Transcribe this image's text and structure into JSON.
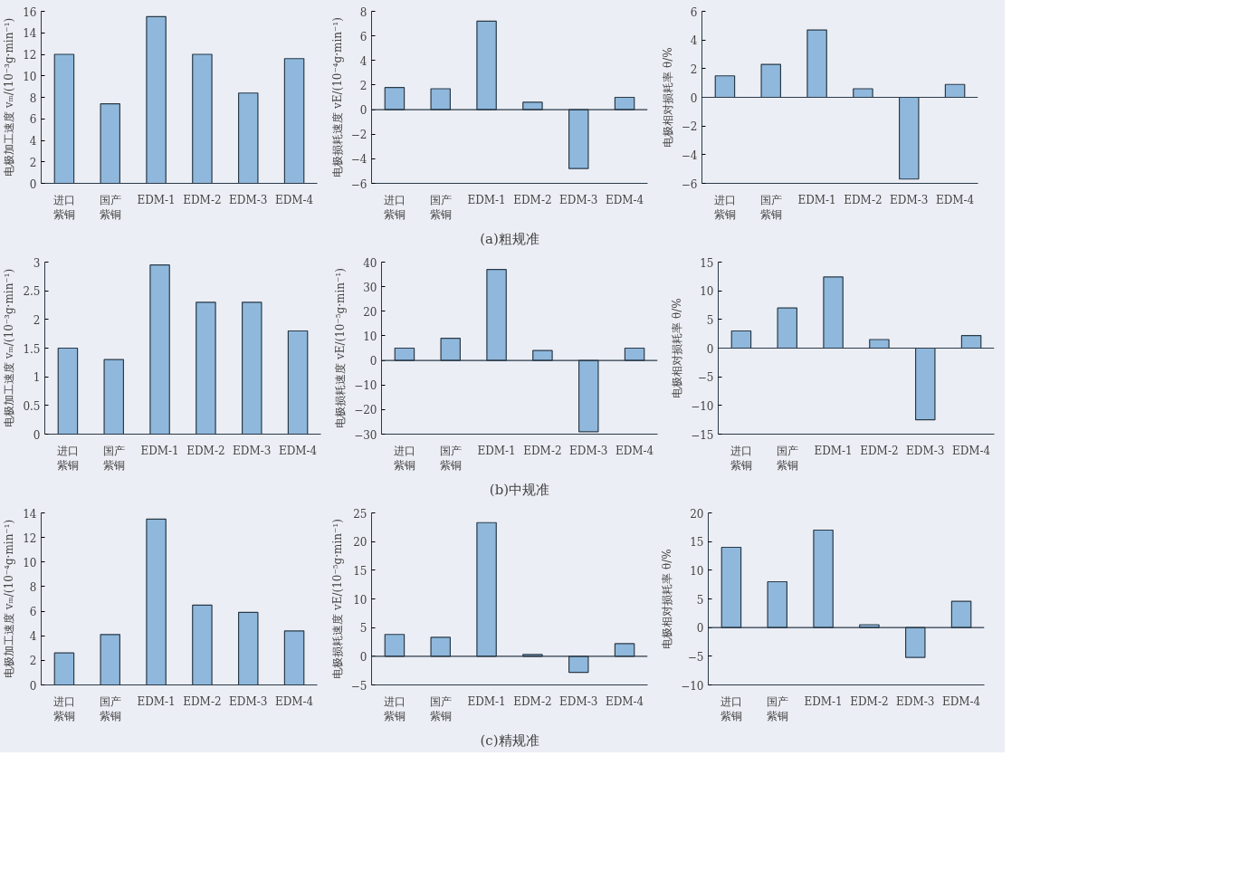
{
  "chart_data": [
    {
      "type": "bar",
      "categories": [
        "进口紫铜",
        "国产紫铜",
        "EDM-1",
        "EDM-2",
        "EDM-3",
        "EDM-4"
      ],
      "ylabel": "电极加工速度 vₘ/(10⁻³g·min⁻¹)",
      "color": "#8fb8dc",
      "values": [
        12,
        7.4,
        15.5,
        12,
        8.4,
        11.6
      ],
      "ylim": [
        0,
        16
      ],
      "yticks": [
        0,
        2,
        4,
        6,
        8,
        10,
        12,
        14,
        16
      ],
      "grid": false
    },
    {
      "type": "bar",
      "categories": [
        "进口紫铜",
        "国产紫铜",
        "EDM-1",
        "EDM-2",
        "EDM-3",
        "EDM-4"
      ],
      "ylabel": "电极损耗速度 vE/(10⁻⁴g·min⁻¹)",
      "color": "#8fb8dc",
      "values": [
        1.8,
        1.7,
        7.2,
        0.6,
        -4.8,
        1.0
      ],
      "ylim": [
        -6,
        8
      ],
      "yticks": [
        -6,
        -4,
        -2,
        0,
        2,
        4,
        6,
        8
      ],
      "ref_lines": [
        {
          "axis": "y",
          "value": 0
        }
      ],
      "annotations": [
        "(a)粗规准"
      ],
      "grid": false
    },
    {
      "type": "bar",
      "categories": [
        "进口紫铜",
        "国产紫铜",
        "EDM-1",
        "EDM-2",
        "EDM-3",
        "EDM-4"
      ],
      "ylabel": "电极相对损耗率 θ/%",
      "color": "#8fb8dc",
      "values": [
        1.5,
        2.3,
        4.7,
        0.6,
        -5.7,
        0.9
      ],
      "ylim": [
        -6,
        6
      ],
      "yticks": [
        -6,
        -4,
        -2,
        0,
        2,
        4,
        6
      ],
      "ref_lines": [
        {
          "axis": "y",
          "value": 0
        }
      ],
      "grid": false
    },
    {
      "type": "bar",
      "categories": [
        "进口紫铜",
        "国产紫铜",
        "EDM-1",
        "EDM-2",
        "EDM-3",
        "EDM-4"
      ],
      "ylabel": "电极加工速度 vₘ/(10⁻³g·min⁻¹)",
      "color": "#8fb8dc",
      "values": [
        1.5,
        1.3,
        2.95,
        2.3,
        2.3,
        1.8
      ],
      "ylim": [
        0,
        3
      ],
      "yticks": [
        0,
        0.5,
        1,
        1.5,
        2,
        2.5,
        3
      ],
      "grid": false
    },
    {
      "type": "bar",
      "categories": [
        "进口紫铜",
        "国产紫铜",
        "EDM-1",
        "EDM-2",
        "EDM-3",
        "EDM-4"
      ],
      "ylabel": "电极损耗速度 vE/(10⁻⁵g·min⁻¹)",
      "color": "#8fb8dc",
      "values": [
        5,
        9,
        37,
        4,
        -29,
        5
      ],
      "ylim": [
        -30,
        40
      ],
      "yticks": [
        -30,
        -20,
        -10,
        0,
        10,
        20,
        30,
        40
      ],
      "ref_lines": [
        {
          "axis": "y",
          "value": 0
        }
      ],
      "annotations": [
        "(b)中规准"
      ],
      "grid": false
    },
    {
      "type": "bar",
      "categories": [
        "进口紫铜",
        "国产紫铜",
        "EDM-1",
        "EDM-2",
        "EDM-3",
        "EDM-4"
      ],
      "ylabel": "电极相对损耗率 θ/%",
      "color": "#8fb8dc",
      "values": [
        3,
        7,
        12.4,
        1.5,
        -12.5,
        2.2
      ],
      "ylim": [
        -15,
        15
      ],
      "yticks": [
        -15,
        -10,
        -5,
        0,
        5,
        10,
        15
      ],
      "ref_lines": [
        {
          "axis": "y",
          "value": 0
        }
      ],
      "grid": false
    },
    {
      "type": "bar",
      "categories": [
        "进口紫铜",
        "国产紫铜",
        "EDM-1",
        "EDM-2",
        "EDM-3",
        "EDM-4"
      ],
      "ylabel": "电极加工速度 vₘ/(10⁻⁴g·min⁻¹)",
      "color": "#8fb8dc",
      "values": [
        2.6,
        4.1,
        13.5,
        6.5,
        5.9,
        4.4
      ],
      "ylim": [
        0,
        14
      ],
      "yticks": [
        0,
        2,
        4,
        6,
        8,
        10,
        12,
        14
      ],
      "grid": false
    },
    {
      "type": "bar",
      "categories": [
        "进口紫铜",
        "国产紫铜",
        "EDM-1",
        "EDM-2",
        "EDM-3",
        "EDM-4"
      ],
      "ylabel": "电极损耗速度 vE/(10⁻⁵g·min⁻¹)",
      "color": "#8fb8dc",
      "values": [
        3.8,
        3.3,
        23.3,
        0.3,
        -2.8,
        2.2
      ],
      "ylim": [
        -5,
        25
      ],
      "yticks": [
        -5,
        0,
        5,
        10,
        15,
        20,
        25
      ],
      "ref_lines": [
        {
          "axis": "y",
          "value": 0
        }
      ],
      "annotations": [
        "(c)精规准"
      ],
      "grid": false
    },
    {
      "type": "bar",
      "categories": [
        "进口紫铜",
        "国产紫铜",
        "EDM-1",
        "EDM-2",
        "EDM-3",
        "EDM-4"
      ],
      "ylabel": "电极相对损耗率 θ/%",
      "color": "#8fb8dc",
      "values": [
        14,
        8,
        17,
        0.5,
        -5.2,
        4.6
      ],
      "ylim": [
        -10,
        20
      ],
      "yticks": [
        -10,
        -5,
        0,
        5,
        10,
        15,
        20
      ],
      "ref_lines": [
        {
          "axis": "y",
          "value": 0
        }
      ],
      "grid": false
    }
  ]
}
